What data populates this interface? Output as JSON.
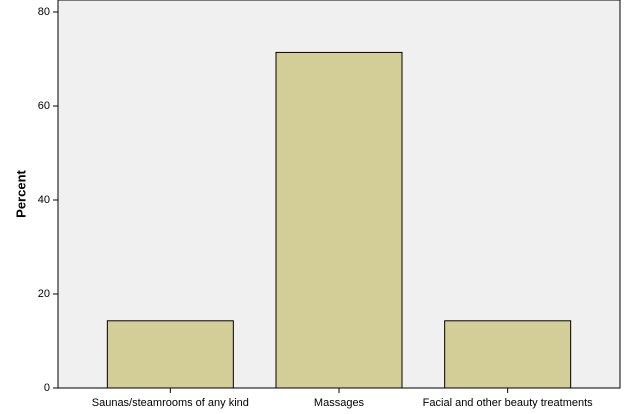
{
  "chart_data": {
    "type": "bar",
    "y_label": "Percent",
    "categories": [
      "Saunas/steamrooms of any kind",
      "Massages",
      "Facial and other beauty treatments"
    ],
    "values": [
      14.3,
      71.4,
      14.3
    ],
    "color": "#d3ce97",
    "ylim": [
      0,
      82.5
    ],
    "yticks": [
      0,
      20,
      40,
      60,
      80
    ]
  }
}
